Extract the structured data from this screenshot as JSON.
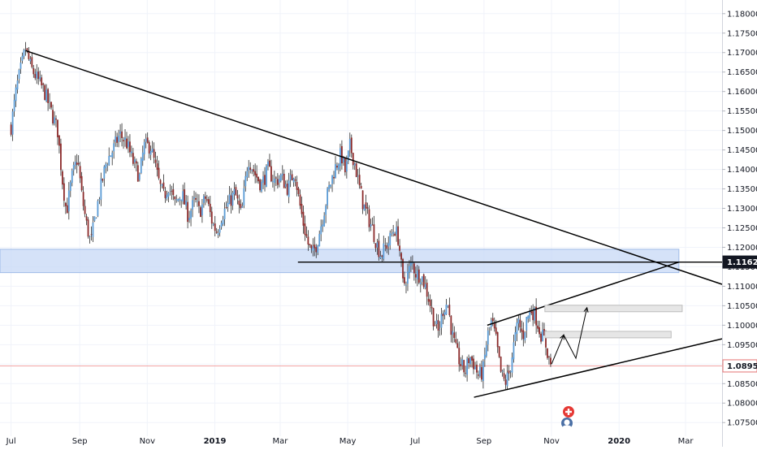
{
  "chart_data": {
    "type": "candlestick",
    "instrument_hint": "currency pair",
    "y_ticks": [
      1.18,
      1.175,
      1.17,
      1.165,
      1.16,
      1.155,
      1.15,
      1.145,
      1.14,
      1.135,
      1.13,
      1.125,
      1.12,
      1.115,
      1.11,
      1.105,
      1.1,
      1.095,
      1.09,
      1.085,
      1.08,
      1.075
    ],
    "y_tick_labels": [
      "1.18000",
      "1.17500",
      "1.17000",
      "1.16500",
      "1.16000",
      "1.15500",
      "1.15000",
      "1.14500",
      "1.14000",
      "1.13500",
      "1.13000",
      "1.12500",
      "1.12000",
      "1.11500",
      "1.11000",
      "1.10500",
      "1.10000",
      "1.09500",
      "1.09000",
      "1.08500",
      "1.08000",
      "1.07500"
    ],
    "ylim": [
      1.0715,
      1.1835
    ],
    "x_ticks": [
      {
        "label": "Jul",
        "day": 0
      },
      {
        "label": "Sep",
        "day": 62
      },
      {
        "label": "Nov",
        "day": 123
      },
      {
        "label": "2019",
        "day": 184
      },
      {
        "label": "Mar",
        "day": 243
      },
      {
        "label": "May",
        "day": 304
      },
      {
        "label": "Jul",
        "day": 365
      },
      {
        "label": "Sep",
        "day": 427
      },
      {
        "label": "Nov",
        "day": 488
      },
      {
        "label": "2020",
        "day": 549
      },
      {
        "label": "Mar",
        "day": 609
      }
    ],
    "xlim_days": [
      -10,
      642
    ],
    "price_path": [
      [
        0,
        1.151
      ],
      [
        5,
        1.161
      ],
      [
        9,
        1.166
      ],
      [
        13,
        1.171
      ],
      [
        18,
        1.166
      ],
      [
        24,
        1.163
      ],
      [
        30,
        1.16
      ],
      [
        36,
        1.155
      ],
      [
        42,
        1.15
      ],
      [
        46,
        1.138
      ],
      [
        50,
        1.129
      ],
      [
        55,
        1.138
      ],
      [
        60,
        1.143
      ],
      [
        64,
        1.133
      ],
      [
        68,
        1.126
      ],
      [
        72,
        1.121
      ],
      [
        76,
        1.128
      ],
      [
        80,
        1.134
      ],
      [
        86,
        1.142
      ],
      [
        92,
        1.145
      ],
      [
        98,
        1.149
      ],
      [
        104,
        1.147
      ],
      [
        110,
        1.142
      ],
      [
        116,
        1.138
      ],
      [
        120,
        1.146
      ],
      [
        126,
        1.146
      ],
      [
        130,
        1.141
      ],
      [
        134,
        1.136
      ],
      [
        138,
        1.133
      ],
      [
        142,
        1.136
      ],
      [
        148,
        1.131
      ],
      [
        154,
        1.134
      ],
      [
        160,
        1.128
      ],
      [
        166,
        1.132
      ],
      [
        170,
        1.129
      ],
      [
        176,
        1.133
      ],
      [
        182,
        1.126
      ],
      [
        186,
        1.124
      ],
      [
        190,
        1.128
      ],
      [
        196,
        1.131
      ],
      [
        202,
        1.134
      ],
      [
        208,
        1.128
      ],
      [
        214,
        1.143
      ],
      [
        220,
        1.139
      ],
      [
        226,
        1.136
      ],
      [
        232,
        1.14
      ],
      [
        238,
        1.137
      ],
      [
        244,
        1.138
      ],
      [
        250,
        1.135
      ],
      [
        256,
        1.14
      ],
      [
        260,
        1.132
      ],
      [
        264,
        1.126
      ],
      [
        268,
        1.121
      ],
      [
        272,
        1.118
      ],
      [
        276,
        1.121
      ],
      [
        280,
        1.126
      ],
      [
        286,
        1.134
      ],
      [
        292,
        1.14
      ],
      [
        298,
        1.144
      ],
      [
        302,
        1.139
      ],
      [
        306,
        1.146
      ],
      [
        310,
        1.142
      ],
      [
        314,
        1.136
      ],
      [
        318,
        1.131
      ],
      [
        322,
        1.128
      ],
      [
        326,
        1.125
      ],
      [
        330,
        1.121
      ],
      [
        334,
        1.118
      ],
      [
        338,
        1.12
      ],
      [
        342,
        1.122
      ],
      [
        346,
        1.125
      ],
      [
        350,
        1.122
      ],
      [
        354,
        1.11
      ],
      [
        358,
        1.113
      ],
      [
        362,
        1.116
      ],
      [
        366,
        1.113
      ],
      [
        370,
        1.113
      ],
      [
        374,
        1.11
      ],
      [
        378,
        1.106
      ],
      [
        382,
        1.101
      ],
      [
        386,
        1.098
      ],
      [
        390,
        1.104
      ],
      [
        394,
        1.106
      ],
      [
        398,
        1.098
      ],
      [
        402,
        1.093
      ],
      [
        406,
        1.09
      ],
      [
        410,
        1.088
      ],
      [
        414,
        1.092
      ],
      [
        418,
        1.09
      ],
      [
        422,
        1.087
      ],
      [
        426,
        1.088
      ],
      [
        430,
        1.097
      ],
      [
        434,
        1.101
      ],
      [
        438,
        1.096
      ],
      [
        442,
        1.088
      ],
      [
        446,
        1.085
      ],
      [
        450,
        1.088
      ],
      [
        454,
        1.095
      ],
      [
        458,
        1.101
      ],
      [
        462,
        1.097
      ],
      [
        466,
        1.102
      ],
      [
        470,
        1.104
      ],
      [
        474,
        1.102
      ],
      [
        478,
        1.098
      ],
      [
        482,
        1.096
      ],
      [
        486,
        1.091
      ],
      [
        488,
        1.0895
      ]
    ],
    "current_price": 1.08955,
    "current_price_label": "1.08955",
    "level_price": 1.11622,
    "level_price_label": "1.11622",
    "annotations": {
      "descending_trendline": {
        "from": [
          13,
          1.1705
        ],
        "to": [
          642,
          1.1105
        ]
      },
      "horizontal_level": {
        "from": [
          259,
          1.1162
        ],
        "to": [
          642,
          1.1162
        ]
      },
      "support_zone": {
        "from_day": -10,
        "to_day": 603,
        "y_low": 1.1135,
        "y_high": 1.1195
      },
      "wedge_upper": {
        "from": [
          430,
          1.1
        ],
        "to": [
          603,
          1.1162
        ]
      },
      "wedge_lower": {
        "from": [
          418,
          1.0815
        ],
        "to": [
          642,
          1.0965
        ]
      },
      "target_box_1": {
        "from_day": 482,
        "to_day": 606,
        "y_low": 1.1038,
        "y_high": 1.1045
      },
      "target_box_2": {
        "from_day": 482,
        "to_day": 596,
        "y_low": 1.097,
        "y_high": 1.0978
      },
      "projected_path": [
        [
          488,
          1.09
        ],
        [
          499,
          1.0975
        ],
        [
          510,
          1.0915
        ],
        [
          520,
          1.1045
        ]
      ]
    },
    "grid": true,
    "legend": "none"
  },
  "icons": [
    "flag-switzerland-icon",
    "author-avatar-icon"
  ],
  "colors": {
    "bull": "#5b9bd5",
    "bear": "#8b2a2a",
    "wick": "#2a2a2a",
    "zone": "#c7d8f5",
    "price_line": "#f2a5a5",
    "level_label_bg": "#131722",
    "price_label_bg": "#ffffff",
    "price_label_text": "#131722"
  }
}
